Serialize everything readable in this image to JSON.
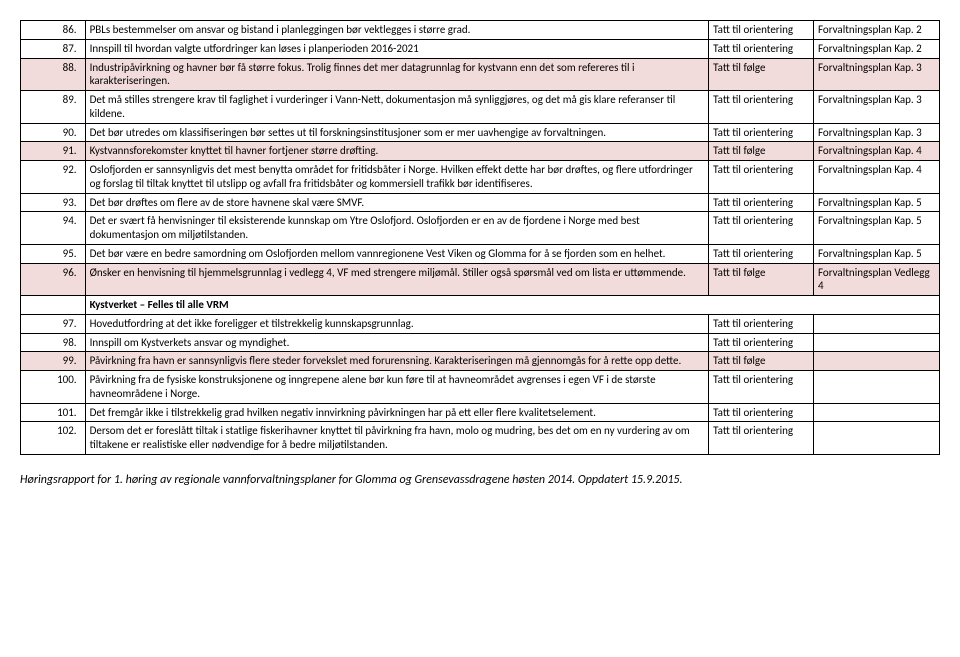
{
  "rows": [
    {
      "num": "86.",
      "text": "PBLs bestemmelser om ansvar og bistand i planleggingen bør vektlegges i større grad.",
      "status": "Tatt til orientering",
      "ref": "Forvaltningsplan Kap. 2",
      "color": ""
    },
    {
      "num": "87.",
      "text": "Innspill til hvordan valgte utfordringer kan løses i planperioden 2016-2021",
      "status": "Tatt til orientering",
      "ref": "Forvaltningsplan Kap. 2",
      "color": ""
    },
    {
      "num": "88.",
      "text": "Industripåvirkning og havner bør få større fokus. Trolig finnes det mer datagrunnlag for kystvann enn det som refereres til i karakteriseringen.",
      "status": "Tatt til følge",
      "ref": "Forvaltningsplan Kap. 3",
      "color": "pink"
    },
    {
      "num": "89.",
      "text": "Det må stilles strengere krav til faglighet i vurderinger i Vann-Nett, dokumentasjon må synliggjøres, og det må gis klare referanser til kildene.",
      "status": "Tatt til orientering",
      "ref": "Forvaltningsplan Kap. 3",
      "color": ""
    },
    {
      "num": "90.",
      "text": "Det bør utredes om klassifiseringen bør settes ut til forskningsinstitusjoner som er mer uavhengige av forvaltningen.",
      "status": "Tatt til orientering",
      "ref": "Forvaltningsplan Kap. 3",
      "color": ""
    },
    {
      "num": "91.",
      "text": "Kystvannsforekomster knyttet til havner fortjener større drøfting.",
      "status": "Tatt til følge",
      "ref": "Forvaltningsplan Kap. 4",
      "color": "pink"
    },
    {
      "num": "92.",
      "text": "Oslofjorden er sannsynligvis det mest benytta området for fritidsbåter i Norge. Hvilken effekt dette har bør drøftes, og flere utfordringer og forslag til tiltak knyttet til utslipp og avfall fra fritidsbåter og kommersiell trafikk bør identifiseres.",
      "status": "Tatt til orientering",
      "ref": "Forvaltningsplan Kap. 4",
      "color": ""
    },
    {
      "num": "93.",
      "text": "Det bør drøftes om flere av de store havnene skal være SMVF.",
      "status": "Tatt til orientering",
      "ref": "Forvaltningsplan Kap. 5",
      "color": ""
    },
    {
      "num": "94.",
      "text": "Det er svært få henvisninger til eksisterende kunnskap om Ytre Oslofjord. Oslofjorden er en av de fjordene i Norge med best dokumentasjon om miljøtilstanden.",
      "status": "Tatt til orientering",
      "ref": "Forvaltningsplan Kap. 5",
      "color": ""
    },
    {
      "num": "95.",
      "text": "Det bør være en bedre samordning om Oslofjorden mellom vannregionene Vest Viken og Glomma for å se fjorden som en helhet.",
      "status": "Tatt til orientering",
      "ref": "Forvaltningsplan Kap. 5",
      "color": ""
    },
    {
      "num": "96.",
      "text": "Ønsker en henvisning til hjemmelsgrunnlag i vedlegg 4, VF med strengere miljømål. Stiller også spørsmål ved om lista er uttømmende.",
      "status": "Tatt til følge",
      "ref": "Forvaltningsplan Vedlegg 4",
      "color": "pink"
    }
  ],
  "section_header": "Kystverket – Felles til alle VRM",
  "rows2": [
    {
      "num": "97.",
      "text": "Hovedutfordring at det ikke foreligger et tilstrekkelig kunnskapsgrunnlag.",
      "status": "Tatt til orientering",
      "ref": "",
      "color": ""
    },
    {
      "num": "98.",
      "text": "Innspill om Kystverkets ansvar og myndighet.",
      "status": "Tatt til orientering",
      "ref": "",
      "color": ""
    },
    {
      "num": "99.",
      "text": "Påvirkning fra havn er sannsynligvis flere steder forvekslet med forurensning. Karakteriseringen må gjennomgås for å rette opp dette.",
      "status": "Tatt til følge",
      "ref": "",
      "color": "pink"
    },
    {
      "num": "100.",
      "text": "Påvirkning fra de fysiske konstruksjonene og inngrepene alene bør kun føre til at havneområdet avgrenses i egen VF i de største havneområdene i Norge.",
      "status": "Tatt til orientering",
      "ref": "",
      "color": ""
    },
    {
      "num": "101.",
      "text": "Det fremgår ikke i tilstrekkelig grad hvilken negativ innvirkning påvirkningen har på ett eller flere kvalitetselement.",
      "status": "Tatt til orientering",
      "ref": "",
      "color": ""
    },
    {
      "num": "102.",
      "text": "Dersom det er foreslått tiltak i statlige fiskerihavner knyttet til påvirkning fra havn, molo og mudring, bes det om en ny vurdering av om tiltakene er realistiske eller nødvendige for å bedre miljøtilstanden.",
      "status": "Tatt til orientering",
      "ref": "",
      "color": ""
    }
  ],
  "footer": "Høringsrapport for 1. høring av regionale vannforvaltningsplaner for Glomma og Grensevassdragene høsten 2014. Oppdatert 15.9.2015."
}
